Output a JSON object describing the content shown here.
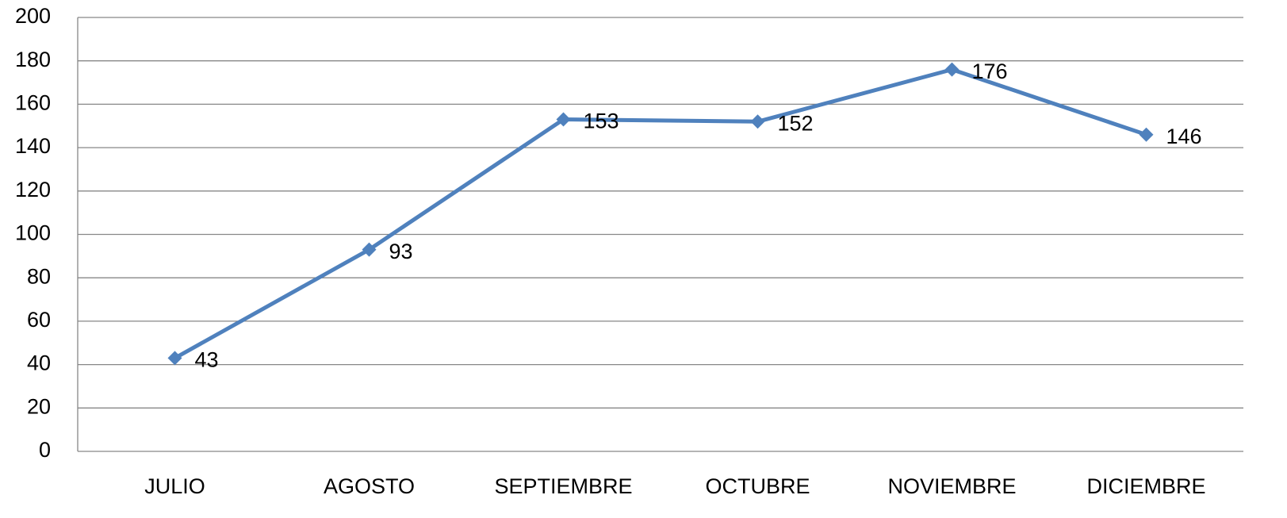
{
  "chart_data": {
    "type": "line",
    "categories": [
      "JULIO",
      "AGOSTO",
      "SEPTIEMBRE",
      "OCTUBRE",
      "NOVIEMBRE",
      "DICIEMBRE"
    ],
    "values": [
      43,
      93,
      153,
      152,
      176,
      146
    ],
    "color": "#4f81bd",
    "ylim": [
      0,
      200
    ],
    "yticks": [
      0,
      20,
      40,
      60,
      80,
      100,
      120,
      140,
      160,
      180,
      200
    ],
    "grid": true
  }
}
